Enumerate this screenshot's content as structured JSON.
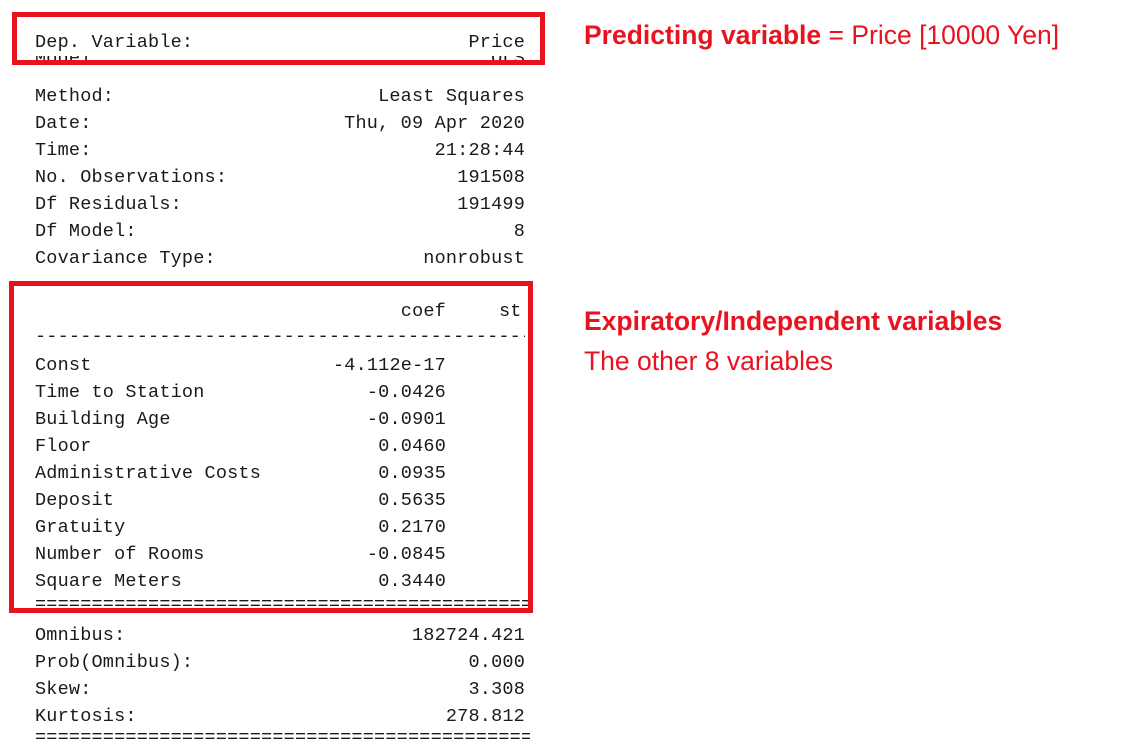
{
  "summary": {
    "header": [
      {
        "label": "Dep. Variable:",
        "value": "Price"
      },
      {
        "label": "Model:",
        "value": "OLS"
      },
      {
        "label": "Method:",
        "value": "Least Squares"
      },
      {
        "label": "Date:",
        "value": "Thu, 09 Apr 2020"
      },
      {
        "label": "Time:",
        "value": "21:28:44"
      },
      {
        "label": "No. Observations:",
        "value": "191508"
      },
      {
        "label": "Df Residuals:",
        "value": "191499"
      },
      {
        "label": "Df Model:",
        "value": "8"
      },
      {
        "label": "Covariance Type:",
        "value": "nonrobust"
      }
    ],
    "coef_header": "coef",
    "coef_header_cut": "st",
    "dash_rule": "----------------------------------------------",
    "eq_rule": "==============================================",
    "coefficients": [
      {
        "name": "Const",
        "coef": "-4.112e-17"
      },
      {
        "name": "Time to Station",
        "coef": "-0.0426"
      },
      {
        "name": "Building Age",
        "coef": "-0.0901"
      },
      {
        "name": "Floor",
        "coef": "0.0460"
      },
      {
        "name": "Administrative Costs",
        "coef": "0.0935"
      },
      {
        "name": "Deposit",
        "coef": "0.5635"
      },
      {
        "name": "Gratuity",
        "coef": "0.2170"
      },
      {
        "name": "Number of Rooms",
        "coef": "-0.0845"
      },
      {
        "name": "Square Meters",
        "coef": "0.3440"
      }
    ],
    "diagnostics": [
      {
        "label": "Omnibus:",
        "value": "182724.421"
      },
      {
        "label": "Prob(Omnibus):",
        "value": "0.000"
      },
      {
        "label": "Skew:",
        "value": "3.308"
      },
      {
        "label": "Kurtosis:",
        "value": "278.812"
      }
    ]
  },
  "annotations": {
    "predicting_bold": "Predicting variable",
    "predicting_rest": " = Price [10000 Yen]",
    "explanatory_bold": "Expiratory/Independent variables",
    "explanatory_sub": "The other 8 variables"
  },
  "colors": {
    "highlight": "#e8131f",
    "text": "#1a1a1a"
  }
}
